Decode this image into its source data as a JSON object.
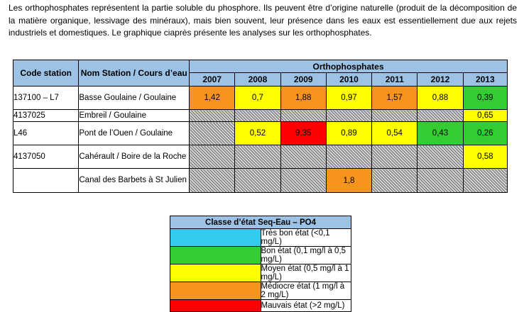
{
  "intro": "Les orthophosphates représentent la partie soluble du phosphore. Ils peuvent être d’origine naturelle (produit de la décomposition de la matière organique, lessivage des minéraux), mais bien souvent, leur présence dans les eaux est essentiellement due aux rejets industriels et domestiques. Le graphique ciaprès présente les analyses sur les orthophosphates.",
  "table": {
    "col_code": "Code station",
    "col_name": "Nom Station / Cours d’eau",
    "col_group": "Orthophosphates",
    "years": [
      "2007",
      "2008",
      "2009",
      "2010",
      "2011",
      "2012",
      "2013"
    ],
    "rows": [
      {
        "code": "137100 – L7",
        "name": "Basse Goulaine / Goulaine",
        "cells": [
          {
            "v": "1,42",
            "c": "#f7941d"
          },
          {
            "v": "0,7",
            "c": "#ffff00"
          },
          {
            "v": "1,88",
            "c": "#f7941d"
          },
          {
            "v": "0,97",
            "c": "#ffff00"
          },
          {
            "v": "1,57",
            "c": "#f7941d"
          },
          {
            "v": "0,88",
            "c": "#ffff00"
          },
          {
            "v": "0,39",
            "c": "#33cc33"
          }
        ]
      },
      {
        "code": "4137025",
        "name": "Embreil / Goulaine",
        "cells": [
          {
            "v": "",
            "c": "hatch"
          },
          {
            "v": "",
            "c": "hatch"
          },
          {
            "v": "",
            "c": "hatch"
          },
          {
            "v": "",
            "c": "hatch"
          },
          {
            "v": "",
            "c": "hatch"
          },
          {
            "v": "",
            "c": "hatch"
          },
          {
            "v": "0,65",
            "c": "#ffff00"
          }
        ]
      },
      {
        "code": "L46",
        "name": "Pont de l’Ouen / Goulaine",
        "cells": [
          {
            "v": "",
            "c": "hatch"
          },
          {
            "v": "0,52",
            "c": "#ffff00"
          },
          {
            "v": "9,35",
            "c": "#ff0000"
          },
          {
            "v": "0,89",
            "c": "#ffff00"
          },
          {
            "v": "0,54",
            "c": "#ffff00"
          },
          {
            "v": "0,43",
            "c": "#33cc33"
          },
          {
            "v": "0,26",
            "c": "#33cc33"
          }
        ]
      },
      {
        "code": "4137050",
        "name": "Cahérault / Boire de la Roche",
        "cells": [
          {
            "v": "",
            "c": "hatch"
          },
          {
            "v": "",
            "c": "hatch"
          },
          {
            "v": "",
            "c": "hatch"
          },
          {
            "v": "",
            "c": "hatch"
          },
          {
            "v": "",
            "c": "hatch"
          },
          {
            "v": "",
            "c": "hatch"
          },
          {
            "v": "0,58",
            "c": "#ffff00"
          }
        ]
      },
      {
        "code": "",
        "name": "Canal des Barbets à St Julien",
        "cells": [
          {
            "v": "",
            "c": "hatch"
          },
          {
            "v": "",
            "c": "hatch"
          },
          {
            "v": "",
            "c": "hatch"
          },
          {
            "v": "1,8",
            "c": "#f7941d"
          },
          {
            "v": "",
            "c": "hatch"
          },
          {
            "v": "",
            "c": "hatch"
          },
          {
            "v": "",
            "c": "hatch"
          }
        ]
      }
    ]
  },
  "legend": {
    "title": "Classe d’état Seq-Eau – PO4",
    "items": [
      {
        "label": "Très bon état (<0,1 mg/L)",
        "color": "#33ccee"
      },
      {
        "label": "Bon état (0,1 mg/l à 0,5 mg/L)",
        "color": "#33cc33"
      },
      {
        "label": "Moyen état (0,5 mg/l à 1 mg/L)",
        "color": "#ffff00"
      },
      {
        "label": "Médiocre état (1 mg/l à 2 mg/L)",
        "color": "#f7941d"
      },
      {
        "label": "Mauvais état (>2 mg/L)",
        "color": "#ff0000"
      }
    ]
  }
}
